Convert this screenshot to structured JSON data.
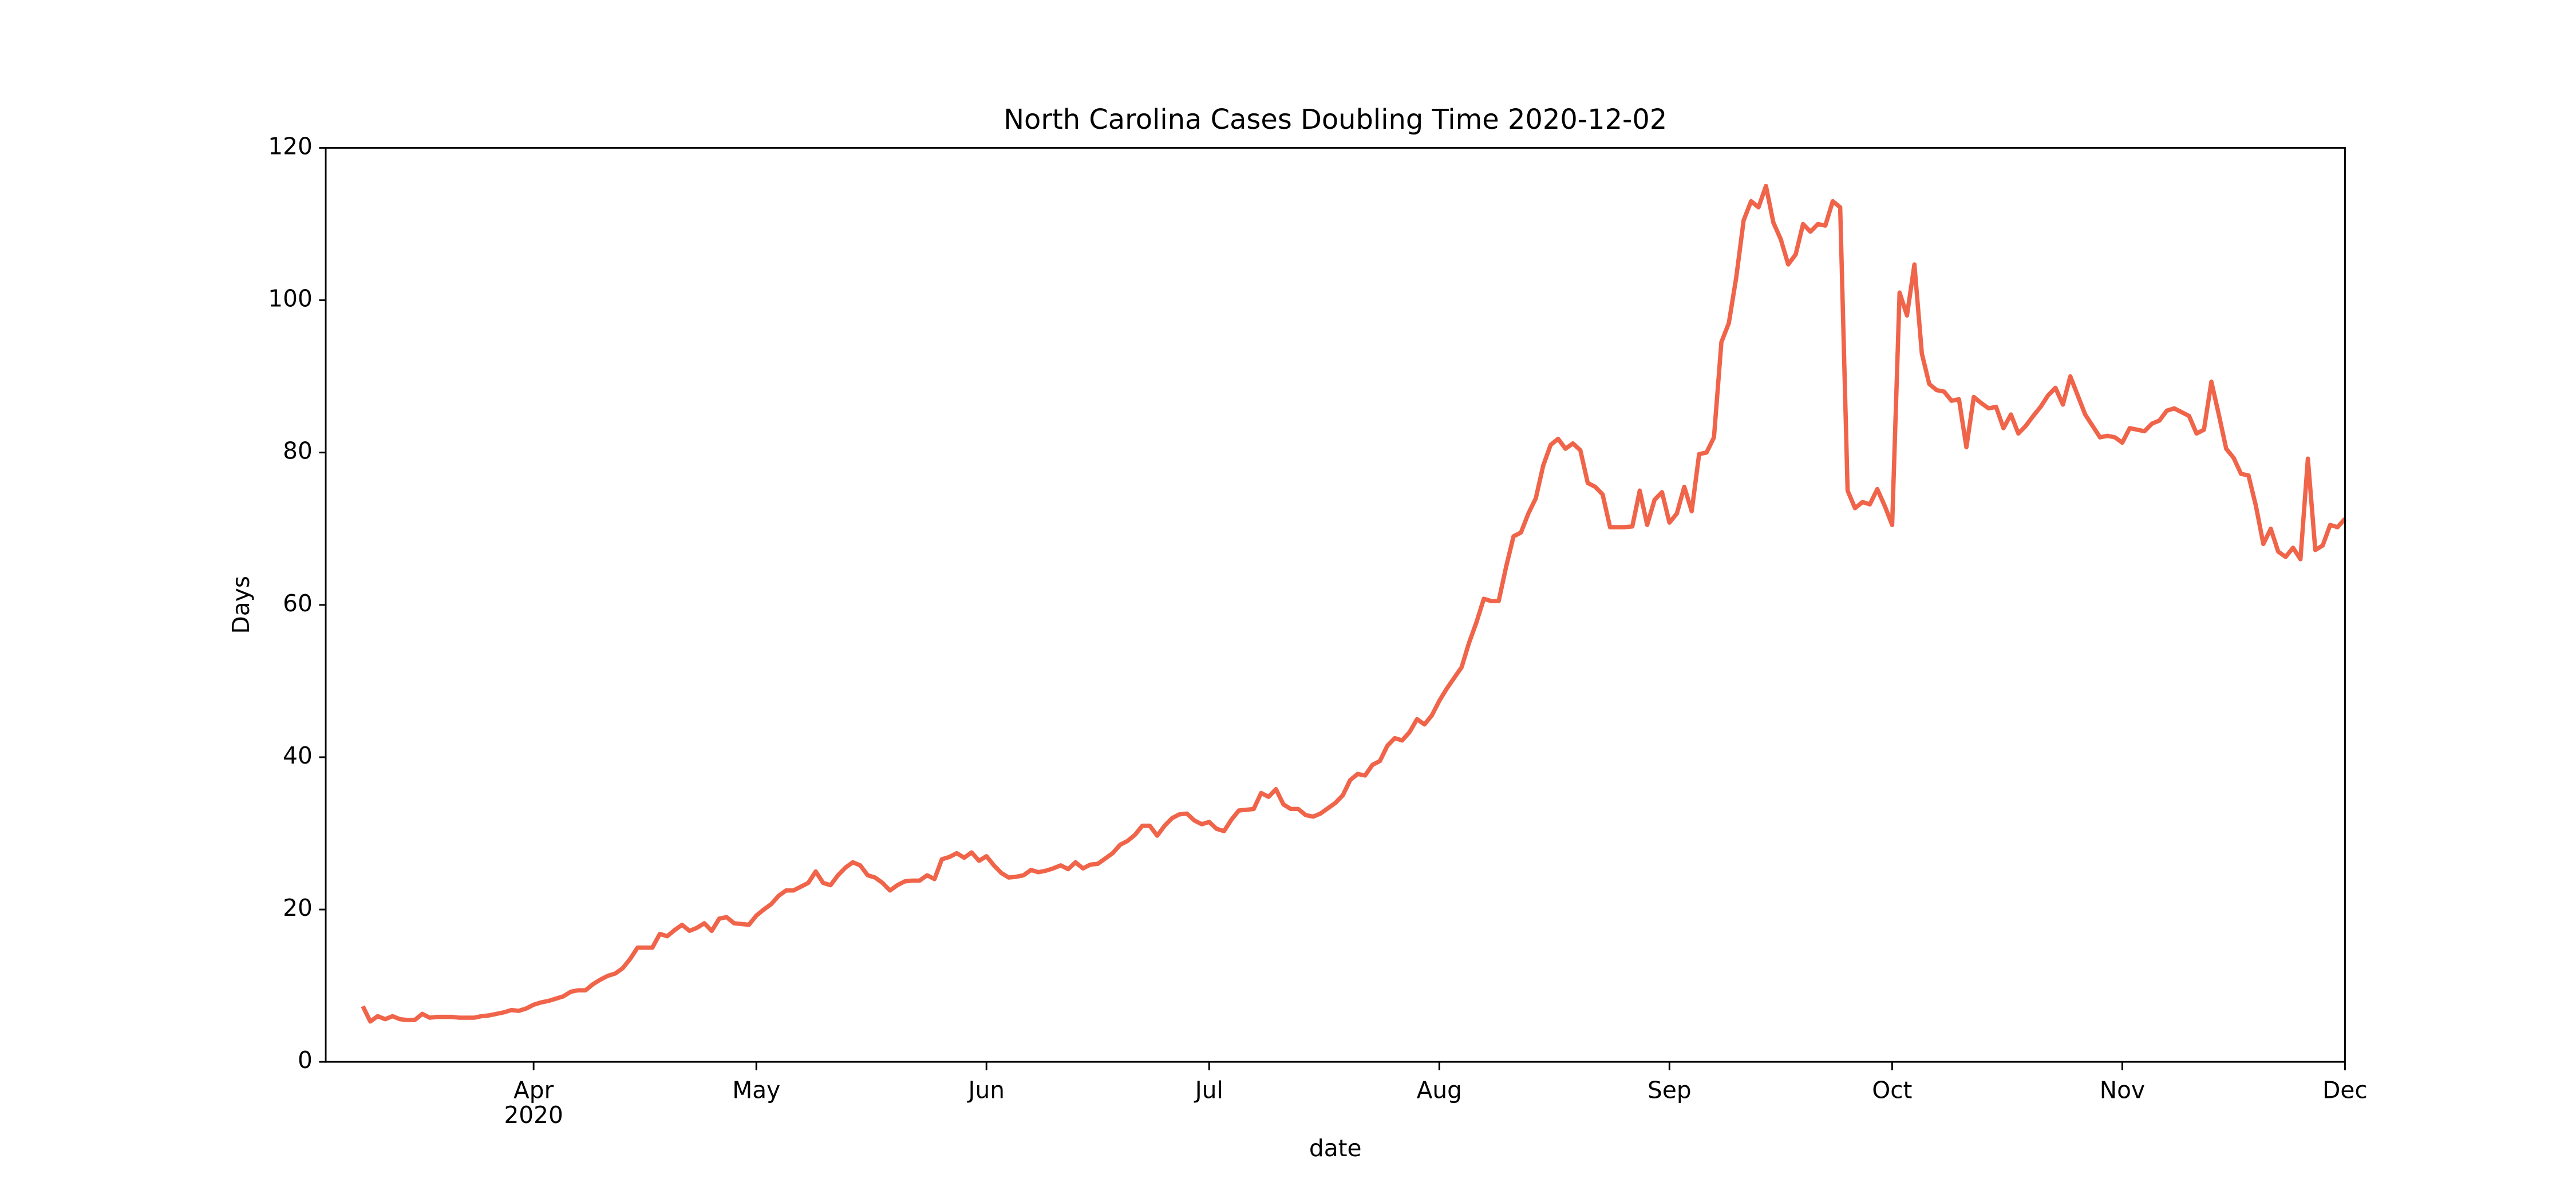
{
  "chart_data": {
    "type": "line",
    "title": "North Carolina Cases Doubling Time 2020-12-02",
    "xlabel": "date",
    "ylabel": "Days",
    "x": [
      "2020-03-09",
      "2020-03-10",
      "2020-03-11",
      "2020-03-12",
      "2020-03-13",
      "2020-03-14",
      "2020-03-15",
      "2020-03-16",
      "2020-03-17",
      "2020-03-18",
      "2020-03-19",
      "2020-03-20",
      "2020-03-21",
      "2020-03-22",
      "2020-03-23",
      "2020-03-24",
      "2020-03-25",
      "2020-03-26",
      "2020-03-27",
      "2020-03-28",
      "2020-03-29",
      "2020-03-30",
      "2020-03-31",
      "2020-04-01",
      "2020-04-02",
      "2020-04-03",
      "2020-04-04",
      "2020-04-05",
      "2020-04-06",
      "2020-04-07",
      "2020-04-08",
      "2020-04-09",
      "2020-04-10",
      "2020-04-11",
      "2020-04-12",
      "2020-04-13",
      "2020-04-14",
      "2020-04-15",
      "2020-04-16",
      "2020-04-17",
      "2020-04-18",
      "2020-04-19",
      "2020-04-20",
      "2020-04-21",
      "2020-04-22",
      "2020-04-23",
      "2020-04-24",
      "2020-04-25",
      "2020-04-26",
      "2020-04-27",
      "2020-04-28",
      "2020-04-29",
      "2020-04-30",
      "2020-05-01",
      "2020-05-02",
      "2020-05-03",
      "2020-05-04",
      "2020-05-05",
      "2020-05-06",
      "2020-05-07",
      "2020-05-08",
      "2020-05-09",
      "2020-05-10",
      "2020-05-11",
      "2020-05-12",
      "2020-05-13",
      "2020-05-14",
      "2020-05-15",
      "2020-05-16",
      "2020-05-17",
      "2020-05-18",
      "2020-05-19",
      "2020-05-20",
      "2020-05-21",
      "2020-05-22",
      "2020-05-23",
      "2020-05-24",
      "2020-05-25",
      "2020-05-26",
      "2020-05-27",
      "2020-05-28",
      "2020-05-29",
      "2020-05-30",
      "2020-05-31",
      "2020-06-01",
      "2020-06-02",
      "2020-06-03",
      "2020-06-04",
      "2020-06-05",
      "2020-06-06",
      "2020-06-07",
      "2020-06-08",
      "2020-06-09",
      "2020-06-10",
      "2020-06-11",
      "2020-06-12",
      "2020-06-13",
      "2020-06-14",
      "2020-06-15",
      "2020-06-16",
      "2020-06-17",
      "2020-06-18",
      "2020-06-19",
      "2020-06-20",
      "2020-06-21",
      "2020-06-22",
      "2020-06-23",
      "2020-06-24",
      "2020-06-25",
      "2020-06-26",
      "2020-06-27",
      "2020-06-28",
      "2020-06-29",
      "2020-06-30",
      "2020-07-01",
      "2020-07-02",
      "2020-07-03",
      "2020-07-04",
      "2020-07-05",
      "2020-07-06",
      "2020-07-07",
      "2020-07-08",
      "2020-07-09",
      "2020-07-10",
      "2020-07-11",
      "2020-07-12",
      "2020-07-13",
      "2020-07-14",
      "2020-07-15",
      "2020-07-16",
      "2020-07-17",
      "2020-07-18",
      "2020-07-19",
      "2020-07-20",
      "2020-07-21",
      "2020-07-22",
      "2020-07-23",
      "2020-07-24",
      "2020-07-25",
      "2020-07-26",
      "2020-07-27",
      "2020-07-28",
      "2020-07-29",
      "2020-07-30",
      "2020-07-31",
      "2020-08-01",
      "2020-08-02",
      "2020-08-03",
      "2020-08-04",
      "2020-08-05",
      "2020-08-06",
      "2020-08-07",
      "2020-08-08",
      "2020-08-09",
      "2020-08-10",
      "2020-08-11",
      "2020-08-12",
      "2020-08-13",
      "2020-08-14",
      "2020-08-15",
      "2020-08-16",
      "2020-08-17",
      "2020-08-18",
      "2020-08-19",
      "2020-08-20",
      "2020-08-21",
      "2020-08-22",
      "2020-08-23",
      "2020-08-24",
      "2020-08-25",
      "2020-08-26",
      "2020-08-27",
      "2020-08-28",
      "2020-08-29",
      "2020-08-30",
      "2020-08-31",
      "2020-09-01",
      "2020-09-02",
      "2020-09-03",
      "2020-09-04",
      "2020-09-05",
      "2020-09-06",
      "2020-09-07",
      "2020-09-08",
      "2020-09-09",
      "2020-09-10",
      "2020-09-11",
      "2020-09-12",
      "2020-09-13",
      "2020-09-14",
      "2020-09-15",
      "2020-09-16",
      "2020-09-17",
      "2020-09-18",
      "2020-09-19",
      "2020-09-20",
      "2020-09-21",
      "2020-09-22",
      "2020-09-23",
      "2020-09-24",
      "2020-09-25",
      "2020-09-26",
      "2020-09-27",
      "2020-09-28",
      "2020-09-29",
      "2020-09-30",
      "2020-10-01",
      "2020-10-02",
      "2020-10-03",
      "2020-10-04",
      "2020-10-05",
      "2020-10-06",
      "2020-10-07",
      "2020-10-08",
      "2020-10-09",
      "2020-10-10",
      "2020-10-11",
      "2020-10-12",
      "2020-10-13",
      "2020-10-14",
      "2020-10-15",
      "2020-10-16",
      "2020-10-17",
      "2020-10-18",
      "2020-10-19",
      "2020-10-20",
      "2020-10-21",
      "2020-10-22",
      "2020-10-23",
      "2020-10-24",
      "2020-10-25",
      "2020-10-26",
      "2020-10-27",
      "2020-10-28",
      "2020-10-29",
      "2020-10-30",
      "2020-10-31",
      "2020-11-01",
      "2020-11-02",
      "2020-11-03",
      "2020-11-04",
      "2020-11-05",
      "2020-11-06",
      "2020-11-07",
      "2020-11-08",
      "2020-11-09",
      "2020-11-10",
      "2020-11-11",
      "2020-11-12",
      "2020-11-13",
      "2020-11-14",
      "2020-11-15",
      "2020-11-16",
      "2020-11-17",
      "2020-11-18",
      "2020-11-19",
      "2020-11-20",
      "2020-11-21",
      "2020-11-22",
      "2020-11-23",
      "2020-11-24",
      "2020-11-25",
      "2020-11-26",
      "2020-11-27",
      "2020-11-28",
      "2020-11-29",
      "2020-11-30",
      "2020-12-01"
    ],
    "series": [
      {
        "color": "#f0644a",
        "values": [
          7.3,
          5.3,
          6,
          5.6,
          6,
          5.6,
          5.5,
          5.5,
          6.3,
          5.8,
          5.9,
          5.9,
          5.9,
          5.8,
          5.8,
          5.8,
          6,
          6.1,
          6.3,
          6.5,
          6.8,
          6.7,
          7,
          7.5,
          7.8,
          8,
          8.3,
          8.6,
          9.2,
          9.4,
          9.4,
          10.2,
          10.8,
          11.3,
          11.6,
          12.3,
          13.5,
          15,
          15,
          15,
          16.8,
          16.5,
          17.3,
          18,
          17.2,
          17.6,
          18.2,
          17.2,
          18.8,
          19,
          18.2,
          18.1,
          18,
          19.2,
          20,
          20.7,
          21.8,
          22.5,
          22.5,
          23,
          23.5,
          25,
          23.5,
          23.2,
          24.5,
          25.5,
          26.2,
          25.8,
          24.5,
          24.2,
          23.5,
          22.5,
          23.2,
          23.7,
          23.8,
          23.8,
          24.5,
          24,
          26.6,
          26.9,
          27.4,
          26.8,
          27.5,
          26.4,
          27,
          25.8,
          24.8,
          24.2,
          24.3,
          24.5,
          25.2,
          24.9,
          25.1,
          25.4,
          25.8,
          25.3,
          26.2,
          25.4,
          25.9,
          26,
          26.7,
          27.4,
          28.5,
          29,
          29.8,
          31,
          31,
          29.7,
          31,
          32,
          32.5,
          32.6,
          31.7,
          31.2,
          31.5,
          30.6,
          30.3,
          31.8,
          33,
          33.1,
          33.2,
          35.3,
          34.8,
          35.8,
          33.8,
          33.2,
          33.2,
          32.4,
          32.2,
          32.6,
          33.3,
          34,
          35,
          37,
          37.8,
          37.6,
          39,
          39.5,
          41.5,
          42.5,
          42.2,
          43.3,
          45,
          44.3,
          45.5,
          47.4,
          49,
          50.4,
          51.8,
          55,
          57.7,
          60.8,
          60.5,
          60.5,
          65,
          69,
          69.5,
          72,
          74,
          78.3,
          81,
          81.8,
          80.5,
          81.2,
          80.3,
          76,
          75.5,
          74.5,
          70.2,
          70.2,
          70.2,
          70.3,
          75,
          70.5,
          73.8,
          74.8,
          70.8,
          72,
          75.5,
          72.3,
          79.8,
          80,
          82,
          94.5,
          97,
          103,
          110.5,
          113,
          112.2,
          115,
          110.2,
          108,
          104.7,
          106,
          110,
          109,
          110,
          109.8,
          113,
          112.2,
          75,
          72.7,
          73.5,
          73.2,
          75.2,
          73,
          70.5,
          101,
          98,
          104.7,
          93,
          89,
          88.2,
          88,
          86.8,
          87,
          80.7,
          87.3,
          86.5,
          85.8,
          86,
          83.2,
          85,
          82.5,
          83.5,
          84.8,
          86,
          87.5,
          88.5,
          86.3,
          90,
          87.5,
          85,
          83.5,
          82,
          82.2,
          82,
          81.3,
          83.2,
          83,
          82.8,
          83.8,
          84.2,
          85.5,
          85.8,
          85.3,
          84.8,
          82.5,
          83,
          89.3,
          85,
          80.5,
          79.3,
          77.2,
          77,
          73,
          68,
          70,
          67,
          66.3,
          67.5,
          66,
          79.2,
          67.2,
          67.8,
          70.5,
          70.2,
          71.3
        ]
      }
    ],
    "xlim": [
      "2020-03-04",
      "2020-12-01"
    ],
    "xticks": [
      {
        "value": "2020-04-01",
        "label": "Apr"
      },
      {
        "value": "2020-05-01",
        "label": "May"
      },
      {
        "value": "2020-06-01",
        "label": "Jun"
      },
      {
        "value": "2020-07-01",
        "label": "Jul"
      },
      {
        "value": "2020-08-01",
        "label": "Aug"
      },
      {
        "value": "2020-09-01",
        "label": "Sep"
      },
      {
        "value": "2020-10-01",
        "label": "Oct"
      },
      {
        "value": "2020-11-01",
        "label": "Nov"
      },
      {
        "value": "2020-12-01",
        "label": "Dec"
      }
    ],
    "xtick_year": "2020",
    "ylim": [
      0,
      120
    ],
    "yticks": [
      0,
      20,
      40,
      60,
      80,
      100,
      120
    ],
    "grid": false
  }
}
